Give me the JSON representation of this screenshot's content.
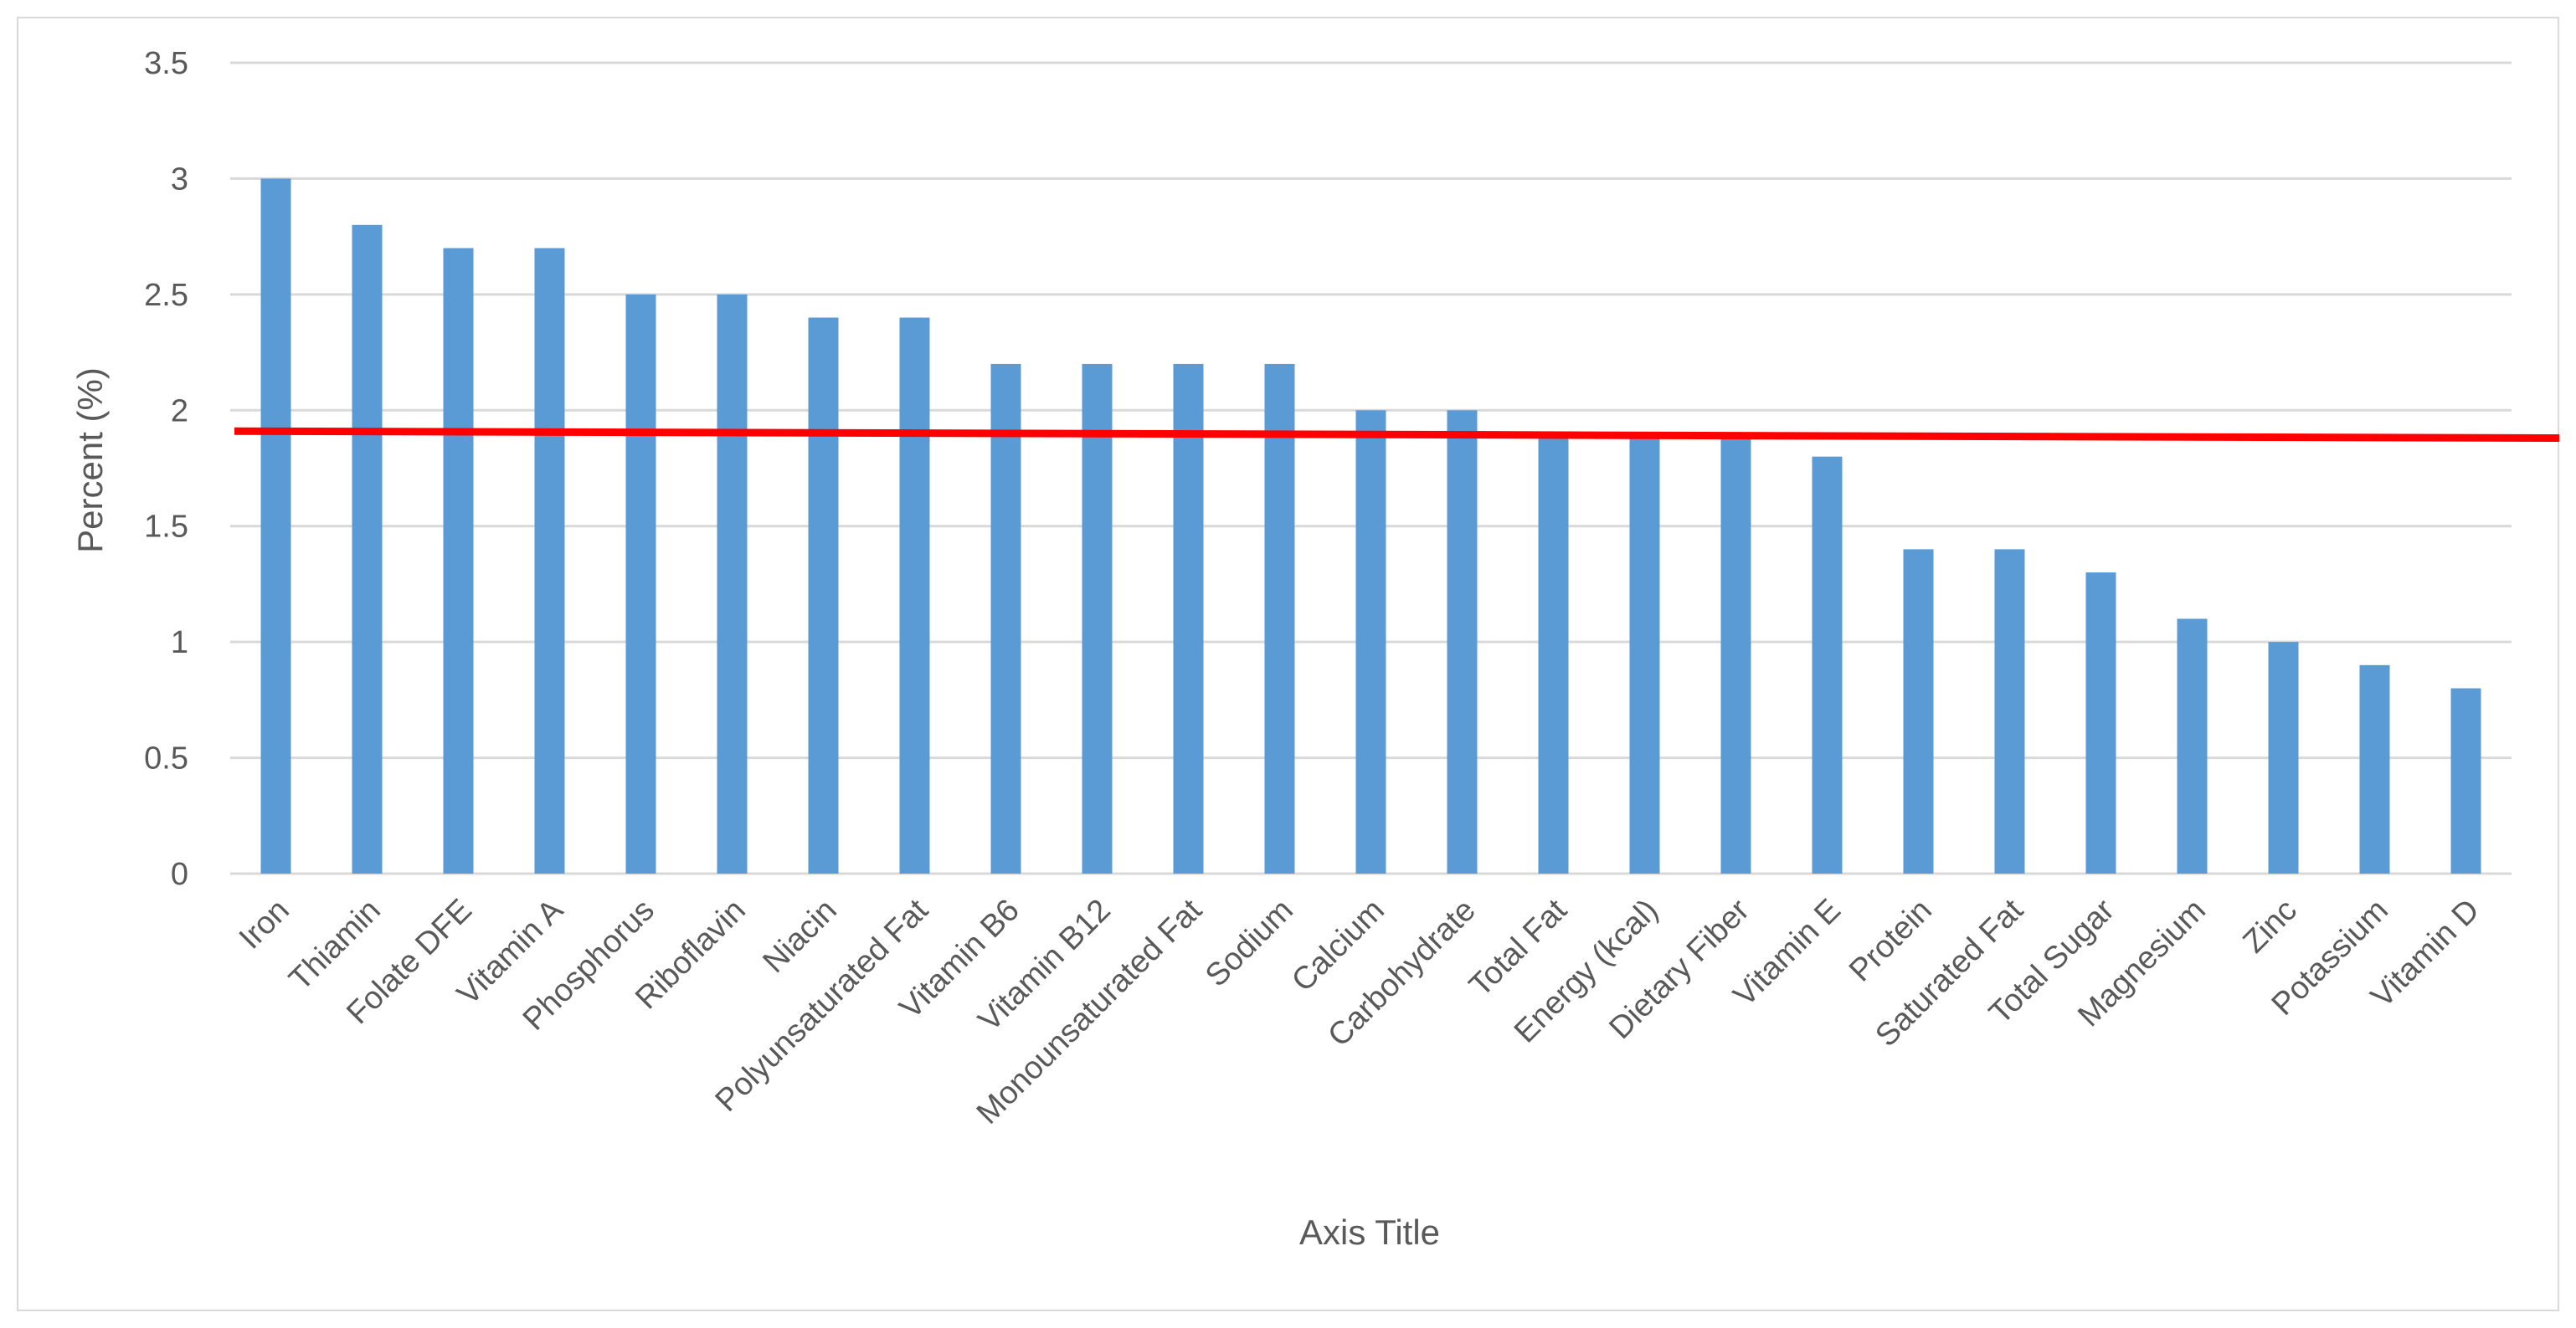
{
  "chart_data": {
    "type": "bar",
    "title": "",
    "xlabel": "Axis Title",
    "ylabel": "Percent (%)",
    "ylim": [
      0,
      3.5
    ],
    "yticks": [
      "0",
      "0.5",
      "1",
      "1.5",
      "2",
      "2.5",
      "3",
      "3.5"
    ],
    "grid": true,
    "legend": "none",
    "categories": [
      "Iron",
      "Thiamin",
      "Folate DFE",
      "Vitamin A",
      "Phosphorus",
      "Riboflavin",
      "Niacin",
      "Polyunsaturated Fat",
      "Vitamin B6",
      "Vitamin B12",
      "Monounsaturated Fat",
      "Sodium",
      "Calcium",
      "Carbohydrate",
      "Total Fat",
      "Energy (kcal)",
      "Dietary Fiber",
      "Vitamin E",
      "Protein",
      "Saturated Fat",
      "Total Sugar",
      "Magnesium",
      "Zinc",
      "Potassium",
      "Vitamin D"
    ],
    "values": [
      3.0,
      2.8,
      2.7,
      2.7,
      2.5,
      2.5,
      2.4,
      2.4,
      2.2,
      2.2,
      2.2,
      2.2,
      2.0,
      2.0,
      1.9,
      1.9,
      1.9,
      1.8,
      1.4,
      1.4,
      1.3,
      1.1,
      1.0,
      0.9,
      0.8
    ],
    "reference_line": {
      "y_start": 1.91,
      "y_end": 1.88
    },
    "colors": {
      "bar": "#5b9bd5",
      "reference_line": "#ff0000",
      "grid": "#d9d9d9",
      "text": "#595959",
      "border": "#d9d9d9"
    }
  }
}
